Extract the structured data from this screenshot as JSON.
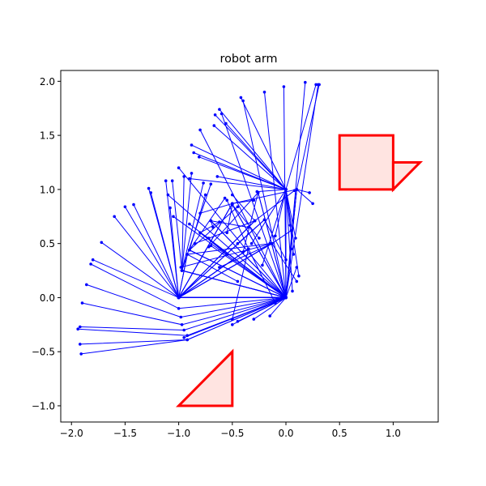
{
  "chart_data": {
    "type": "line",
    "title": "robot arm",
    "xlabel": "",
    "ylabel": "",
    "xlim": [
      -2.1,
      1.42
    ],
    "ylim": [
      -1.15,
      2.1
    ],
    "xticks": [
      -2.0,
      -1.5,
      -1.0,
      -0.5,
      0.0,
      0.5,
      1.0
    ],
    "xtick_labels": [
      "−2.0",
      "−1.5",
      "−1.0",
      "−0.5",
      "0.0",
      "0.5",
      "1.0"
    ],
    "yticks": [
      -1.0,
      -0.5,
      0.0,
      0.5,
      1.0,
      1.5,
      2.0
    ],
    "ytick_labels": [
      "−1.0",
      "−0.5",
      "0.0",
      "0.5",
      "1.0",
      "1.5",
      "2.0"
    ],
    "grid": false,
    "arm_color": "#0000ff",
    "obstacle_edge_color": "#ff0000",
    "obstacle_fill_color": "#ffe4e1",
    "obstacles": [
      {
        "name": "square",
        "points": [
          [
            0.5,
            1.0
          ],
          [
            1.0,
            1.0
          ],
          [
            1.0,
            1.5
          ],
          [
            0.5,
            1.5
          ]
        ]
      },
      {
        "name": "upper-triangle",
        "points": [
          [
            1.0,
            1.0
          ],
          [
            1.25,
            1.25
          ],
          [
            1.0,
            1.25
          ]
        ]
      },
      {
        "name": "lower-triangle",
        "points": [
          [
            -1.0,
            -1.0
          ],
          [
            -0.5,
            -1.0
          ],
          [
            -0.5,
            -0.5
          ]
        ]
      }
    ],
    "arms": [
      [
        [
          -1.0,
          0.0
        ],
        [
          0.0,
          0.0
        ],
        [
          0.3,
          1.97
        ]
      ],
      [
        [
          -1.0,
          0.0
        ],
        [
          0.0,
          0.0
        ],
        [
          0.18,
          1.99
        ]
      ],
      [
        [
          -1.0,
          0.0
        ],
        [
          0.0,
          0.0
        ],
        [
          -0.02,
          1.95
        ]
      ],
      [
        [
          -1.0,
          0.0
        ],
        [
          0.0,
          0.0
        ],
        [
          -0.2,
          1.9
        ]
      ],
      [
        [
          -1.0,
          0.0
        ],
        [
          0.0,
          0.0
        ],
        [
          -0.4,
          1.82
        ]
      ],
      [
        [
          -1.0,
          0.0
        ],
        [
          0.0,
          0.0
        ],
        [
          -0.6,
          1.7
        ]
      ],
      [
        [
          -1.0,
          0.0
        ],
        [
          0.0,
          0.0
        ],
        [
          -0.8,
          1.55
        ]
      ],
      [
        [
          -1.0,
          0.0
        ],
        [
          0.0,
          0.0
        ],
        [
          -1.0,
          1.2
        ]
      ],
      [
        [
          -1.0,
          0.0
        ],
        [
          0.0,
          0.0
        ],
        [
          -1.1,
          0.95
        ]
      ],
      [
        [
          -1.0,
          0.0
        ],
        [
          0.0,
          0.0
        ],
        [
          -1.05,
          0.75
        ]
      ],
      [
        [
          -1.0,
          0.0
        ],
        [
          0.0,
          0.0
        ],
        [
          -0.9,
          0.68
        ]
      ],
      [
        [
          -1.0,
          0.0
        ],
        [
          0.0,
          0.0
        ],
        [
          -0.7,
          0.48
        ]
      ],
      [
        [
          -1.0,
          0.0
        ],
        [
          -0.5,
          0.87
        ],
        [
          0.1,
          1.0
        ]
      ],
      [
        [
          -1.0,
          0.0
        ],
        [
          -0.5,
          0.87
        ],
        [
          -0.3,
          0.9
        ]
      ],
      [
        [
          -1.0,
          0.0
        ],
        [
          -0.5,
          0.87
        ],
        [
          -0.8,
          0.78
        ]
      ],
      [
        [
          -1.0,
          0.0
        ],
        [
          -0.29,
          0.71
        ],
        [
          0.08,
          0.99
        ]
      ],
      [
        [
          -1.0,
          0.0
        ],
        [
          -0.29,
          0.71
        ],
        [
          -0.5,
          0.95
        ]
      ],
      [
        [
          -1.0,
          0.0
        ],
        [
          -0.29,
          0.71
        ],
        [
          -0.85,
          0.5
        ]
      ],
      [
        [
          -1.0,
          0.0
        ],
        [
          -0.13,
          0.5
        ],
        [
          0.1,
          0.15
        ]
      ],
      [
        [
          -1.0,
          0.0
        ],
        [
          -0.13,
          0.5
        ],
        [
          0.05,
          0.62
        ]
      ],
      [
        [
          -1.0,
          0.0
        ],
        [
          -0.13,
          0.5
        ],
        [
          -0.62,
          0.28
        ]
      ],
      [
        [
          -1.0,
          0.0
        ],
        [
          -0.13,
          0.5
        ],
        [
          -0.98,
          0.28
        ]
      ],
      [
        [
          -1.0,
          0.0
        ],
        [
          0.0,
          0.0
        ],
        [
          0.05,
          0.45
        ]
      ],
      [
        [
          -1.0,
          0.0
        ],
        [
          0.0,
          0.0
        ],
        [
          0.1,
          0.28
        ]
      ],
      [
        [
          -1.0,
          0.0
        ],
        [
          0.0,
          0.0
        ],
        [
          -0.45,
          -0.22
        ]
      ],
      [
        [
          -1.0,
          0.0
        ],
        [
          0.0,
          0.0
        ],
        [
          -0.3,
          -0.2
        ]
      ],
      [
        [
          -1.0,
          0.0
        ],
        [
          0.0,
          0.0
        ],
        [
          -0.15,
          -0.17
        ]
      ],
      [
        [
          -1.0,
          0.0
        ],
        [
          0.0,
          0.0
        ],
        [
          -0.5,
          -0.25
        ]
      ],
      [
        [
          -1.0,
          0.0
        ],
        [
          0.0,
          0.0
        ],
        [
          -0.95,
          -0.37
        ]
      ],
      [
        [
          -1.0,
          0.0
        ],
        [
          -0.35,
          0.45
        ],
        [
          -0.1,
          -0.05
        ]
      ],
      [
        [
          -1.0,
          0.0
        ],
        [
          -0.35,
          0.45
        ],
        [
          -0.5,
          -0.2
        ]
      ],
      [
        [
          -1.0,
          0.0
        ],
        [
          -0.35,
          0.45
        ],
        [
          -0.55,
          0.9
        ]
      ],
      [
        [
          -1.0,
          0.0
        ],
        [
          -0.2,
          0.72
        ],
        [
          0.0,
          0.35
        ]
      ],
      [
        [
          -1.0,
          0.0
        ],
        [
          -0.2,
          0.72
        ],
        [
          -0.45,
          0.5
        ]
      ],
      [
        [
          -1.0,
          0.0
        ],
        [
          -0.92,
          0.4
        ],
        [
          -0.15,
          0.5
        ]
      ],
      [
        [
          -1.0,
          0.0
        ],
        [
          -0.92,
          0.4
        ],
        [
          -0.45,
          0.15
        ]
      ],
      [
        [
          0.0,
          0.0
        ],
        [
          -0.92,
          -0.39
        ],
        [
          -1.91,
          -0.52
        ]
      ],
      [
        [
          0.0,
          0.0
        ],
        [
          -0.92,
          -0.39
        ],
        [
          -1.92,
          -0.43
        ]
      ],
      [
        [
          0.0,
          0.0
        ],
        [
          -0.92,
          -0.35
        ],
        [
          -1.94,
          -0.29
        ]
      ],
      [
        [
          0.0,
          0.0
        ],
        [
          -0.95,
          -0.3
        ],
        [
          -1.92,
          -0.27
        ]
      ],
      [
        [
          0.0,
          0.0
        ],
        [
          -0.97,
          -0.25
        ],
        [
          -1.9,
          -0.05
        ]
      ],
      [
        [
          0.0,
          0.0
        ],
        [
          -0.98,
          -0.18
        ],
        [
          -1.86,
          0.12
        ]
      ],
      [
        [
          0.0,
          0.0
        ],
        [
          -1.0,
          -0.1
        ],
        [
          -1.82,
          0.31
        ]
      ],
      [
        [
          0.0,
          0.0
        ],
        [
          -1.0,
          0.0
        ],
        [
          -1.8,
          0.35
        ]
      ],
      [
        [
          0.0,
          0.0
        ],
        [
          -1.0,
          0.0
        ],
        [
          -1.72,
          0.51
        ]
      ],
      [
        [
          0.0,
          0.0
        ],
        [
          -1.0,
          0.0
        ],
        [
          -1.6,
          0.75
        ]
      ],
      [
        [
          0.0,
          0.0
        ],
        [
          -1.0,
          0.0
        ],
        [
          -1.5,
          0.84
        ]
      ],
      [
        [
          0.0,
          0.0
        ],
        [
          -1.0,
          0.0
        ],
        [
          -1.42,
          0.86
        ]
      ],
      [
        [
          0.0,
          0.0
        ],
        [
          -1.0,
          0.0
        ],
        [
          -1.28,
          1.01
        ]
      ],
      [
        [
          0.0,
          0.0
        ],
        [
          -1.0,
          0.0
        ],
        [
          -1.26,
          0.97
        ]
      ],
      [
        [
          0.0,
          0.0
        ],
        [
          -1.0,
          0.0
        ],
        [
          -1.12,
          1.08
        ]
      ],
      [
        [
          0.0,
          0.0
        ],
        [
          -1.0,
          0.0
        ],
        [
          -1.08,
          0.83
        ]
      ],
      [
        [
          0.0,
          0.0
        ],
        [
          -0.97,
          0.25
        ],
        [
          -0.95,
          1.12
        ]
      ],
      [
        [
          0.0,
          0.0
        ],
        [
          -0.97,
          0.25
        ],
        [
          -0.88,
          1.15
        ]
      ],
      [
        [
          0.0,
          0.0
        ],
        [
          -0.97,
          0.25
        ],
        [
          -1.06,
          1.08
        ]
      ],
      [
        [
          0.0,
          0.0
        ],
        [
          -0.97,
          0.25
        ],
        [
          -0.77,
          1.06
        ]
      ],
      [
        [
          0.0,
          0.0
        ],
        [
          -0.97,
          0.25
        ],
        [
          -0.7,
          1.05
        ]
      ],
      [
        [
          0.0,
          0.0
        ],
        [
          -0.9,
          0.44
        ],
        [
          -0.75,
          0.95
        ]
      ],
      [
        [
          0.0,
          0.0
        ],
        [
          -0.9,
          0.44
        ],
        [
          -0.57,
          0.92
        ]
      ],
      [
        [
          0.0,
          0.0
        ],
        [
          -0.9,
          0.44
        ],
        [
          -0.45,
          0.84
        ]
      ],
      [
        [
          0.0,
          0.0
        ],
        [
          -0.8,
          0.6
        ],
        [
          -0.62,
          0.7
        ]
      ],
      [
        [
          0.0,
          0.0
        ],
        [
          -0.8,
          0.6
        ],
        [
          -0.72,
          0.55
        ]
      ],
      [
        [
          0.0,
          0.0
        ],
        [
          -0.8,
          0.6
        ],
        [
          -0.55,
          0.4
        ]
      ],
      [
        [
          0.0,
          0.0
        ],
        [
          -0.7,
          0.71
        ],
        [
          -0.35,
          0.65
        ]
      ],
      [
        [
          0.0,
          0.0
        ],
        [
          -0.7,
          0.71
        ],
        [
          -0.68,
          0.65
        ]
      ],
      [
        [
          0.0,
          0.0
        ],
        [
          -0.5,
          0.86
        ],
        [
          -0.25,
          0.55
        ]
      ],
      [
        [
          0.0,
          0.0
        ],
        [
          -0.5,
          0.86
        ],
        [
          -0.55,
          0.6
        ]
      ],
      [
        [
          0.0,
          0.0
        ],
        [
          -0.26,
          0.97
        ],
        [
          -0.4,
          0.42
        ]
      ],
      [
        [
          0.0,
          0.0
        ],
        [
          -0.26,
          0.97
        ],
        [
          -0.72,
          0.47
        ]
      ],
      [
        [
          0.0,
          0.0
        ],
        [
          0.0,
          1.0
        ],
        [
          -0.42,
          1.85
        ]
      ],
      [
        [
          0.0,
          0.0
        ],
        [
          0.0,
          1.0
        ],
        [
          -0.62,
          1.74
        ]
      ],
      [
        [
          0.0,
          0.0
        ],
        [
          0.0,
          1.0
        ],
        [
          -0.66,
          1.69
        ]
      ],
      [
        [
          0.0,
          0.0
        ],
        [
          0.0,
          1.0
        ],
        [
          -0.67,
          1.59
        ]
      ],
      [
        [
          0.0,
          0.0
        ],
        [
          0.0,
          1.0
        ],
        [
          -0.56,
          1.61
        ]
      ],
      [
        [
          0.0,
          0.0
        ],
        [
          0.0,
          1.0
        ],
        [
          -0.88,
          1.41
        ]
      ],
      [
        [
          0.0,
          0.0
        ],
        [
          0.0,
          1.0
        ],
        [
          -0.81,
          1.3
        ]
      ],
      [
        [
          0.0,
          0.0
        ],
        [
          0.0,
          1.0
        ],
        [
          -0.86,
          1.34
        ]
      ],
      [
        [
          0.0,
          0.0
        ],
        [
          0.0,
          1.0
        ],
        [
          -0.9,
          1.1
        ]
      ],
      [
        [
          0.0,
          0.0
        ],
        [
          0.0,
          1.0
        ],
        [
          -0.64,
          1.12
        ]
      ],
      [
        [
          0.0,
          0.0
        ],
        [
          0.0,
          1.0
        ],
        [
          -0.27,
          0.98
        ]
      ],
      [
        [
          0.0,
          0.0
        ],
        [
          0.0,
          1.0
        ],
        [
          0.28,
          1.97
        ]
      ],
      [
        [
          0.0,
          0.0
        ],
        [
          0.1,
          1.0
        ],
        [
          0.31,
          1.97
        ]
      ],
      [
        [
          0.0,
          0.0
        ],
        [
          0.1,
          1.0
        ],
        [
          0.22,
          0.97
        ]
      ],
      [
        [
          0.0,
          0.0
        ],
        [
          0.1,
          1.0
        ],
        [
          0.25,
          0.87
        ]
      ],
      [
        [
          0.0,
          0.0
        ],
        [
          0.0,
          1.0
        ],
        [
          0.06,
          0.06
        ]
      ],
      [
        [
          0.0,
          0.0
        ],
        [
          0.0,
          1.0
        ],
        [
          0.12,
          0.2
        ]
      ],
      [
        [
          0.0,
          0.0
        ],
        [
          0.0,
          1.0
        ],
        [
          0.04,
          0.67
        ]
      ],
      [
        [
          0.0,
          0.0
        ],
        [
          0.0,
          1.0
        ],
        [
          -0.1,
          0.57
        ]
      ],
      [
        [
          0.0,
          0.0
        ],
        [
          0.0,
          1.0
        ],
        [
          -0.22,
          0.3
        ]
      ],
      [
        [
          0.0,
          0.0
        ],
        [
          0.0,
          1.0
        ],
        [
          -0.32,
          0.5
        ]
      ],
      [
        [
          0.0,
          0.0
        ],
        [
          0.0,
          1.0
        ],
        [
          0.09,
          0.55
        ]
      ],
      [
        [
          0.0,
          0.0
        ],
        [
          0.0,
          1.0
        ],
        [
          0.07,
          0.4
        ]
      ]
    ]
  }
}
